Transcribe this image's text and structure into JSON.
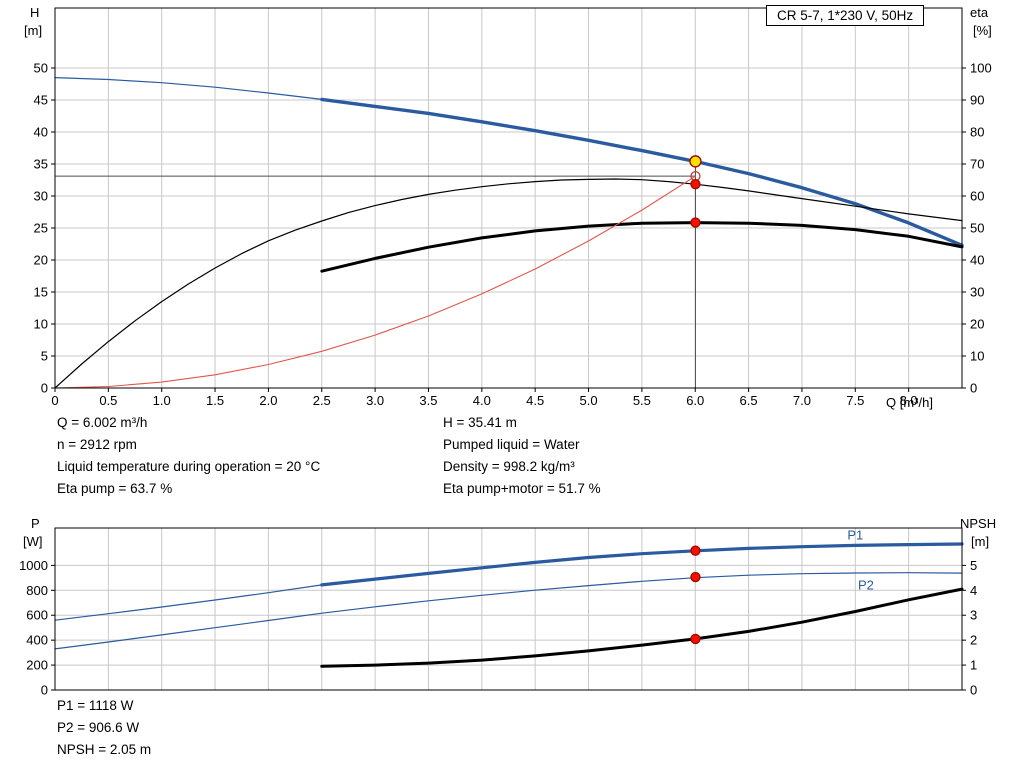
{
  "title_box": "CR 5-7, 1*230 V, 50Hz",
  "colors": {
    "blue": "#2a5a9f",
    "red_curve": "#e2574b",
    "black": "#000000",
    "grid": "#c8c8c8",
    "crosshair": "#4d4d4d",
    "dot_red": "#fb0d00",
    "dot_edge": "#9c0f00",
    "dot_yellow": "#ffe200",
    "open_red": "#c63a32"
  },
  "info_top": {
    "left": [
      "Q = 6.002 m³/h",
      "n = 2912 rpm",
      "Liquid temperature during operation = 20 °C",
      "Eta pump = 63.7 %"
    ],
    "right": [
      "H = 35.41 m",
      "Pumped liquid = Water",
      "Density = 998.2 kg/m³",
      "Eta pump+motor = 51.7 %"
    ]
  },
  "info_bottom": [
    "P1 = 1118 W",
    "P2 = 906.6 W",
    "NPSH = 2.05 m"
  ],
  "chart_data": [
    {
      "type": "line",
      "name": "head-efficiency-chart",
      "x_axis": {
        "label": "Q [m³/h]",
        "max": 8.5,
        "ticks": [
          "0",
          "0.5",
          "1.0",
          "1.5",
          "2.0",
          "2.5",
          "3.0",
          "3.5",
          "4.0",
          "4.5",
          "5.0",
          "5.5",
          "6.0",
          "6.5",
          "7.0",
          "7.5",
          "8.0"
        ]
      },
      "y_left": {
        "name": "H",
        "unit": "[m]",
        "ticks": [
          0,
          5,
          10,
          15,
          20,
          25,
          30,
          35,
          40,
          45,
          50
        ],
        "plot_max": 59.375
      },
      "y_right": {
        "name": "eta",
        "unit": "[%]",
        "ticks": [
          0,
          10,
          20,
          30,
          40,
          50,
          60,
          70,
          80,
          90,
          100
        ],
        "plot_max": 118.75
      },
      "crosshair": {
        "q": 6.002,
        "h_line": 33.1,
        "h_top": 35.41
      },
      "series": [
        {
          "name": "qh-curve-thin",
          "axis": "H",
          "color": "blue",
          "width": 1.2,
          "points": [
            [
              0,
              48.5
            ],
            [
              0.5,
              48.2
            ],
            [
              1,
              47.7
            ],
            [
              1.5,
              47.0
            ],
            [
              2,
              46.1
            ],
            [
              2.5,
              45.1
            ]
          ]
        },
        {
          "name": "qh-curve",
          "axis": "H",
          "color": "blue",
          "width": 3.4,
          "points": [
            [
              2.5,
              45.1
            ],
            [
              3,
              44.0
            ],
            [
              3.5,
              42.9
            ],
            [
              4,
              41.6
            ],
            [
              4.5,
              40.2
            ],
            [
              5,
              38.7
            ],
            [
              5.5,
              37.1
            ],
            [
              6,
              35.41
            ],
            [
              6.5,
              33.5
            ],
            [
              7,
              31.3
            ],
            [
              7.5,
              28.8
            ],
            [
              8,
              25.8
            ],
            [
              8.5,
              22.3
            ]
          ]
        },
        {
          "name": "eta-pump-curve",
          "axis": "eta",
          "color": "black",
          "width": 1.2,
          "points": [
            [
              0,
              0
            ],
            [
              0.25,
              7.5
            ],
            [
              0.5,
              14.5
            ],
            [
              0.75,
              21
            ],
            [
              1,
              27
            ],
            [
              1.25,
              32.5
            ],
            [
              1.5,
              37.5
            ],
            [
              1.75,
              42
            ],
            [
              2,
              46
            ],
            [
              2.25,
              49.3
            ],
            [
              2.5,
              52.2
            ],
            [
              2.75,
              54.8
            ],
            [
              3,
              57
            ],
            [
              3.25,
              58.9
            ],
            [
              3.5,
              60.5
            ],
            [
              3.75,
              61.8
            ],
            [
              4,
              62.9
            ],
            [
              4.25,
              63.8
            ],
            [
              4.5,
              64.5
            ],
            [
              4.75,
              65
            ],
            [
              5,
              65.2
            ],
            [
              5.25,
              65.3
            ],
            [
              5.5,
              65.1
            ],
            [
              5.75,
              64.5
            ],
            [
              6,
              63.7
            ],
            [
              6.25,
              62.7
            ],
            [
              6.5,
              61.6
            ],
            [
              7,
              59.2
            ],
            [
              7.5,
              56.8
            ],
            [
              8,
              54.4
            ],
            [
              8.5,
              52.3
            ]
          ]
        },
        {
          "name": "eta-pump-motor-curve",
          "axis": "eta",
          "color": "black",
          "width": 3,
          "points": [
            [
              2.5,
              36.5
            ],
            [
              3,
              40.5
            ],
            [
              3.5,
              44.0
            ],
            [
              4,
              46.9
            ],
            [
              4.5,
              49.1
            ],
            [
              5,
              50.6
            ],
            [
              5.5,
              51.5
            ],
            [
              6,
              51.7
            ],
            [
              6.5,
              51.5
            ],
            [
              7,
              50.8
            ],
            [
              7.5,
              49.5
            ],
            [
              8,
              47.4
            ],
            [
              8.5,
              44.1
            ]
          ]
        },
        {
          "name": "system-curve",
          "axis": "H",
          "color": "red_curve",
          "width": 1.1,
          "points": [
            [
              0,
              0
            ],
            [
              0.5,
              0.23
            ],
            [
              1,
              0.92
            ],
            [
              1.5,
              2.07
            ],
            [
              2,
              3.67
            ],
            [
              2.5,
              5.74
            ],
            [
              3,
              8.27
            ],
            [
              3.5,
              11.25
            ],
            [
              4,
              14.7
            ],
            [
              4.5,
              18.6
            ],
            [
              5,
              22.97
            ],
            [
              5.5,
              27.79
            ],
            [
              6.002,
              33.1
            ]
          ]
        }
      ],
      "markers": [
        {
          "name": "requested-duty-point",
          "q": 6.002,
          "v": 33.1,
          "axis": "H",
          "r": 4.5,
          "fill": "none",
          "stroke": "open_red"
        },
        {
          "name": "eta-pump-point",
          "q": 6.002,
          "v": 63.7,
          "axis": "eta",
          "r": 4.5,
          "fill": "dot_red",
          "stroke": "dot_edge"
        },
        {
          "name": "eta-pump-motor-point",
          "q": 6.002,
          "v": 51.7,
          "axis": "eta",
          "r": 4.5,
          "fill": "dot_red",
          "stroke": "dot_edge"
        },
        {
          "name": "duty-point",
          "q": 6.002,
          "v": 35.41,
          "axis": "H",
          "r": 5.5,
          "fill": "dot_yellow",
          "stroke": "dot_edge"
        }
      ]
    },
    {
      "type": "line",
      "name": "power-npsh-chart",
      "x_axis": {
        "label": "",
        "max": 8.5,
        "ticks": []
      },
      "y_left": {
        "name": "P",
        "unit": "[W]",
        "ticks": [
          0,
          200,
          400,
          600,
          800,
          1000
        ],
        "plot_max": 1300
      },
      "y_right": {
        "name": "NPSH",
        "unit": "[m]",
        "ticks": [
          0,
          1,
          2,
          3,
          4,
          5
        ],
        "plot_max": 6.5
      },
      "series": [
        {
          "name": "p1-curve-thin",
          "axis": "P",
          "color": "blue",
          "width": 1.2,
          "points": [
            [
              0,
              560
            ],
            [
              0.5,
              612
            ],
            [
              1,
              666
            ],
            [
              1.5,
              722
            ],
            [
              2,
              781
            ],
            [
              2.5,
              843
            ]
          ]
        },
        {
          "name": "p1-curve",
          "axis": "P",
          "color": "blue",
          "width": 3.2,
          "label": "P1",
          "label_q": 7.5,
          "label_v": 1208,
          "points": [
            [
              2.5,
              843
            ],
            [
              3,
              890
            ],
            [
              3.5,
              936
            ],
            [
              4,
              981
            ],
            [
              4.5,
              1024
            ],
            [
              5,
              1063
            ],
            [
              5.5,
              1094
            ],
            [
              6,
              1117
            ],
            [
              6.5,
              1136
            ],
            [
              7,
              1150
            ],
            [
              7.5,
              1160
            ],
            [
              8,
              1167
            ],
            [
              8.5,
              1172
            ]
          ]
        },
        {
          "name": "p2-curve",
          "axis": "P",
          "color": "blue",
          "width": 1.2,
          "label": "P2",
          "label_q": 7.6,
          "label_v": 808,
          "points": [
            [
              0,
              330
            ],
            [
              0.5,
              385
            ],
            [
              1,
              442
            ],
            [
              1.5,
              500
            ],
            [
              2,
              558
            ],
            [
              2.5,
              616
            ],
            [
              3,
              668
            ],
            [
              3.5,
              716
            ],
            [
              4,
              760
            ],
            [
              4.5,
              801
            ],
            [
              5,
              838
            ],
            [
              5.5,
              872
            ],
            [
              6,
              901
            ],
            [
              6.5,
              921
            ],
            [
              7,
              933
            ],
            [
              7.5,
              939
            ],
            [
              8,
              941
            ],
            [
              8.5,
              938
            ]
          ]
        },
        {
          "name": "npsh-curve",
          "axis": "NPSH",
          "color": "black",
          "width": 3,
          "points": [
            [
              2.5,
              0.95
            ],
            [
              3,
              1.0
            ],
            [
              3.5,
              1.08
            ],
            [
              4,
              1.2
            ],
            [
              4.5,
              1.37
            ],
            [
              5,
              1.57
            ],
            [
              5.5,
              1.8
            ],
            [
              6,
              2.05
            ],
            [
              6.5,
              2.35
            ],
            [
              7,
              2.72
            ],
            [
              7.5,
              3.15
            ],
            [
              8,
              3.62
            ],
            [
              8.5,
              4.05
            ]
          ]
        }
      ],
      "markers": [
        {
          "name": "p1-point",
          "q": 6.002,
          "v": 1118,
          "axis": "P",
          "r": 4.5,
          "fill": "dot_red",
          "stroke": "dot_edge"
        },
        {
          "name": "p2-point",
          "q": 6.002,
          "v": 906.6,
          "axis": "P",
          "r": 4.5,
          "fill": "dot_red",
          "stroke": "dot_edge"
        },
        {
          "name": "npsh-point",
          "q": 6.002,
          "v": 2.05,
          "axis": "NPSH",
          "r": 4.5,
          "fill": "dot_red",
          "stroke": "dot_edge"
        }
      ]
    }
  ]
}
